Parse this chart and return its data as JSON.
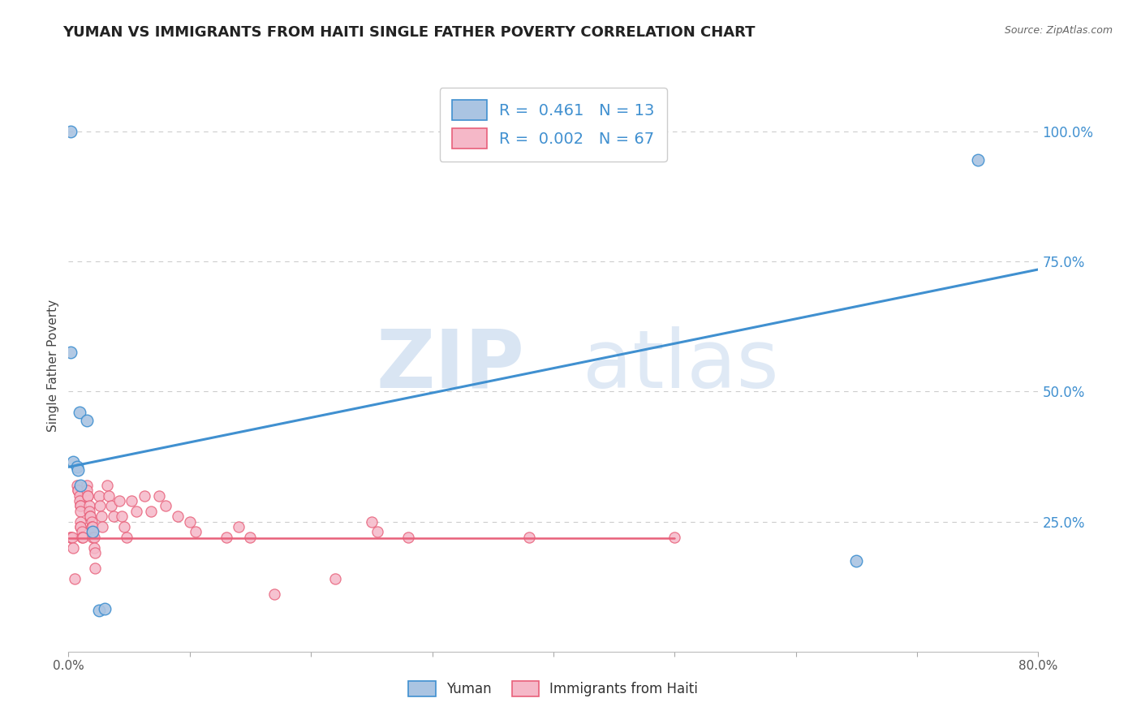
{
  "title": "YUMAN VS IMMIGRANTS FROM HAITI SINGLE FATHER POVERTY CORRELATION CHART",
  "source": "Source: ZipAtlas.com",
  "ylabel": "Single Father Poverty",
  "legend_label1": "Yuman",
  "legend_label2": "Immigrants from Haiti",
  "legend_r1": "R =  0.461",
  "legend_n1": "N = 13",
  "legend_r2": "R =  0.002",
  "legend_n2": "N = 67",
  "watermark_zip": "ZIP",
  "watermark_atlas": "atlas",
  "ytick_labels": [
    "25.0%",
    "50.0%",
    "75.0%",
    "100.0%"
  ],
  "ytick_values": [
    0.25,
    0.5,
    0.75,
    1.0
  ],
  "color_blue": "#aac4e2",
  "color_pink": "#f5b8c8",
  "line_blue": "#4090d0",
  "line_pink": "#e8607a",
  "yuman_x": [
    0.002,
    0.002,
    0.004,
    0.007,
    0.008,
    0.009,
    0.01,
    0.015,
    0.02,
    0.025,
    0.03,
    0.65,
    0.75
  ],
  "yuman_y": [
    1.0,
    0.575,
    0.365,
    0.355,
    0.35,
    0.46,
    0.32,
    0.445,
    0.23,
    0.08,
    0.082,
    0.175,
    0.945
  ],
  "haiti_x": [
    0.002,
    0.002,
    0.003,
    0.004,
    0.005,
    0.007,
    0.008,
    0.008,
    0.009,
    0.009,
    0.01,
    0.01,
    0.01,
    0.01,
    0.01,
    0.01,
    0.011,
    0.011,
    0.012,
    0.015,
    0.015,
    0.016,
    0.016,
    0.017,
    0.017,
    0.018,
    0.018,
    0.019,
    0.019,
    0.02,
    0.02,
    0.02,
    0.021,
    0.021,
    0.022,
    0.022,
    0.025,
    0.026,
    0.027,
    0.028,
    0.032,
    0.033,
    0.035,
    0.037,
    0.042,
    0.044,
    0.046,
    0.048,
    0.052,
    0.056,
    0.063,
    0.068,
    0.075,
    0.08,
    0.09,
    0.1,
    0.105,
    0.13,
    0.14,
    0.15,
    0.17,
    0.22,
    0.25,
    0.255,
    0.28,
    0.38,
    0.5
  ],
  "haiti_y": [
    0.22,
    0.22,
    0.22,
    0.2,
    0.14,
    0.32,
    0.31,
    0.31,
    0.3,
    0.29,
    0.28,
    0.28,
    0.27,
    0.25,
    0.24,
    0.24,
    0.23,
    0.22,
    0.22,
    0.32,
    0.31,
    0.3,
    0.3,
    0.28,
    0.27,
    0.26,
    0.26,
    0.25,
    0.24,
    0.24,
    0.23,
    0.22,
    0.22,
    0.2,
    0.19,
    0.16,
    0.3,
    0.28,
    0.26,
    0.24,
    0.32,
    0.3,
    0.28,
    0.26,
    0.29,
    0.26,
    0.24,
    0.22,
    0.29,
    0.27,
    0.3,
    0.27,
    0.3,
    0.28,
    0.26,
    0.25,
    0.23,
    0.22,
    0.24,
    0.22,
    0.11,
    0.14,
    0.25,
    0.23,
    0.22,
    0.22,
    0.22
  ],
  "xlim": [
    0.0,
    0.8
  ],
  "ylim": [
    0.0,
    1.1
  ],
  "blue_trend_x": [
    0.0,
    0.8
  ],
  "blue_trend_y": [
    0.355,
    0.735
  ],
  "pink_trend_x": [
    0.0,
    0.5
  ],
  "pink_trend_y": [
    0.218,
    0.218
  ],
  "xtick_positions": [
    0.0,
    0.1,
    0.2,
    0.3,
    0.4,
    0.5,
    0.6,
    0.7,
    0.8
  ],
  "xtick_labels": [
    "0.0%",
    "",
    "",
    "",
    "",
    "",
    "",
    "",
    "80.0%"
  ]
}
